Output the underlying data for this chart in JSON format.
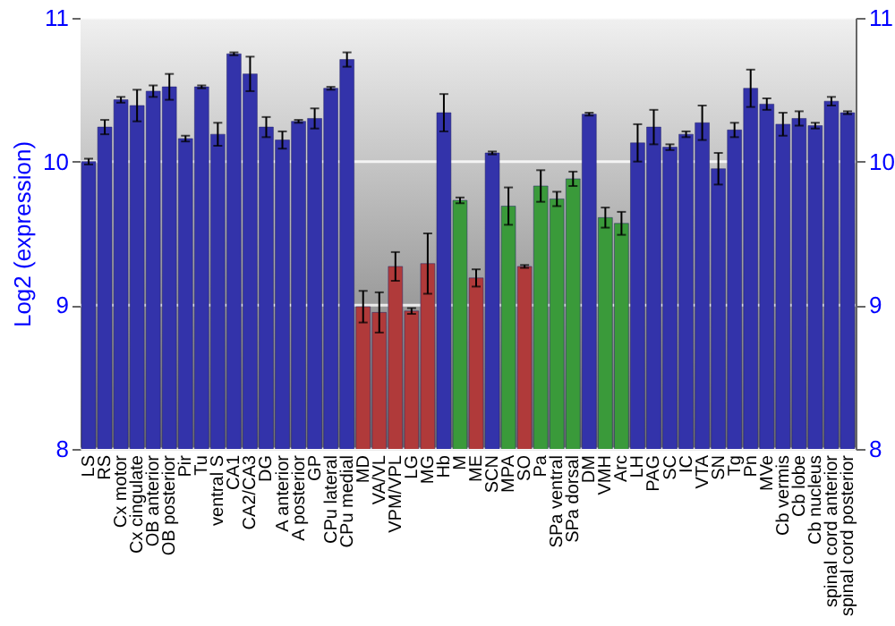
{
  "chart_data": {
    "type": "bar",
    "ylabel": "Log2 (expression)",
    "categories": [
      "LS",
      "RS",
      "Cx motor",
      "Cx cingulate",
      "OB anterior",
      "OB posterior",
      "Pir",
      "Tu",
      "ventral S",
      "CA1",
      "CA2/CA3",
      "DG",
      "A anterior",
      "A posterior",
      "GP",
      "CPu lateral",
      "CPu medial",
      "MD",
      "VA/VL",
      "VPM/VPL",
      "LG",
      "MG",
      "Hb",
      "M",
      "ME",
      "SCN",
      "MPA",
      "SO",
      "Pa",
      "SPa ventral",
      "SPa dorsal",
      "DM",
      "VMH",
      "Arc",
      "LH",
      "PAG",
      "SC",
      "IC",
      "VTA",
      "SN",
      "Tg",
      "Pn",
      "MVe",
      "Cb vermis",
      "Cb lobe",
      "Cb nucleus",
      "spinal cord anterior",
      "spinal cord posterior"
    ],
    "values": [
      10.0,
      10.24,
      10.43,
      10.39,
      10.49,
      10.52,
      10.16,
      10.52,
      10.19,
      10.75,
      10.61,
      10.24,
      10.15,
      10.28,
      10.3,
      10.51,
      10.71,
      8.99,
      8.95,
      9.27,
      8.96,
      9.29,
      10.34,
      9.73,
      9.19,
      10.06,
      9.69,
      9.27,
      9.83,
      9.74,
      9.88,
      10.33,
      9.61,
      9.57,
      10.13,
      10.24,
      10.1,
      10.19,
      10.27,
      9.95,
      10.22,
      10.51,
      10.4,
      10.26,
      10.3,
      10.25,
      10.42,
      10.34
    ],
    "errors": [
      0.02,
      0.05,
      0.02,
      0.11,
      0.04,
      0.09,
      0.02,
      0.01,
      0.08,
      0.01,
      0.12,
      0.07,
      0.06,
      0.01,
      0.07,
      0.01,
      0.05,
      0.11,
      0.14,
      0.1,
      0.02,
      0.21,
      0.13,
      0.02,
      0.06,
      0.01,
      0.13,
      0.01,
      0.11,
      0.05,
      0.05,
      0.01,
      0.07,
      0.08,
      0.13,
      0.12,
      0.02,
      0.02,
      0.12,
      0.11,
      0.05,
      0.13,
      0.04,
      0.08,
      0.05,
      0.02,
      0.03,
      0.01
    ],
    "colors": [
      "#3333aa",
      "#3333aa",
      "#3333aa",
      "#3333aa",
      "#3333aa",
      "#3333aa",
      "#3333aa",
      "#3333aa",
      "#3333aa",
      "#3333aa",
      "#3333aa",
      "#3333aa",
      "#3333aa",
      "#3333aa",
      "#3333aa",
      "#3333aa",
      "#3333aa",
      "#b03a3a",
      "#b03a3a",
      "#b03a3a",
      "#b03a3a",
      "#b03a3a",
      "#3333aa",
      "#3a9a3a",
      "#b03a3a",
      "#3333aa",
      "#3a9a3a",
      "#b03a3a",
      "#3a9a3a",
      "#3a9a3a",
      "#3a9a3a",
      "#3333aa",
      "#3a9a3a",
      "#3a9a3a",
      "#3333aa",
      "#3333aa",
      "#3333aa",
      "#3333aa",
      "#3333aa",
      "#3333aa",
      "#3333aa",
      "#3333aa",
      "#3333aa",
      "#3333aa",
      "#3333aa",
      "#3333aa",
      "#3333aa",
      "#3333aa"
    ],
    "ylim": [
      8,
      11
    ],
    "yticks": [
      8,
      9,
      10,
      11
    ],
    "y2lim": [
      8,
      11
    ],
    "y2ticks": [
      8,
      9,
      10,
      11
    ],
    "grid": "y"
  }
}
